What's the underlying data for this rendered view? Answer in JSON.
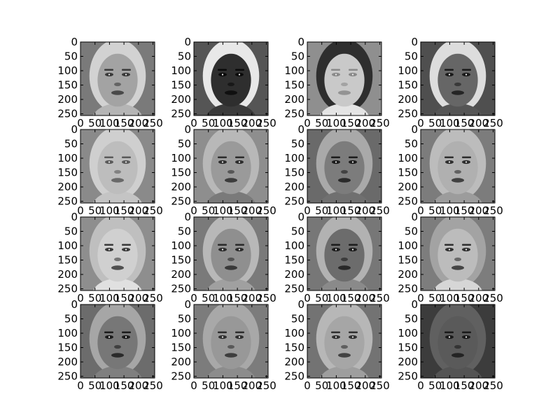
{
  "chart_data": {
    "type": "image-grid",
    "rows": 4,
    "cols": 4,
    "colormap": "gray",
    "xlim": [
      0,
      256
    ],
    "ylim": [
      256,
      0
    ],
    "x_ticks": [
      0,
      50,
      100,
      150,
      200,
      250
    ],
    "y_ticks": [
      0,
      50,
      100,
      150,
      200,
      250
    ],
    "x_tick_labels": [
      "0",
      "50",
      "100",
      "150",
      "200",
      "250"
    ],
    "y_tick_labels": [
      "0",
      "50",
      "100",
      "150",
      "200",
      "250"
    ],
    "panels": [
      {
        "row": 0,
        "col": 0,
        "bg": "#7a7a7a",
        "face": "#a3a3a3",
        "hair": "#d2d2d2",
        "feature": "#3a3a3a",
        "neck": "#b5b5b5"
      },
      {
        "row": 0,
        "col": 1,
        "bg": "#555555",
        "face": "#2e2e2e",
        "hair": "#e8e8e8",
        "feature": "#0a0a0a",
        "neck": "#3a3a3a"
      },
      {
        "row": 0,
        "col": 2,
        "bg": "#8f8f8f",
        "face": "#c9c9c9",
        "hair": "#2e2e2e",
        "feature": "#8a8a8a",
        "neck": "#e4e4e4"
      },
      {
        "row": 0,
        "col": 3,
        "bg": "#4f4f4f",
        "face": "#666666",
        "hair": "#dddddd",
        "feature": "#1a1a1a",
        "neck": "#555555"
      },
      {
        "row": 1,
        "col": 0,
        "bg": "#8a8a8a",
        "face": "#bdbdbd",
        "hair": "#cfcfcf",
        "feature": "#5a5a5a",
        "neck": "#c4c4c4"
      },
      {
        "row": 1,
        "col": 1,
        "bg": "#8e8e8e",
        "face": "#9a9a9a",
        "hair": "#b8b8b8",
        "feature": "#2c2c2c",
        "neck": "#7a7a7a"
      },
      {
        "row": 1,
        "col": 2,
        "bg": "#6a6a6a",
        "face": "#7c7c7c",
        "hair": "#a9a9a9",
        "feature": "#1c1c1c",
        "neck": "#707070"
      },
      {
        "row": 1,
        "col": 3,
        "bg": "#7c7c7c",
        "face": "#b0b0b0",
        "hair": "#bcbcbc",
        "feature": "#2e2e2e",
        "neck": "#9c9c9c"
      },
      {
        "row": 2,
        "col": 0,
        "bg": "#8e8e8e",
        "face": "#d0d0d0",
        "hair": "#bfbfbf",
        "feature": "#3a3a3a",
        "neck": "#e0e0e0"
      },
      {
        "row": 2,
        "col": 1,
        "bg": "#7a7a7a",
        "face": "#8f8f8f",
        "hair": "#b8b8b8",
        "feature": "#2a2a2a",
        "neck": "#a0a0a0"
      },
      {
        "row": 2,
        "col": 2,
        "bg": "#777777",
        "face": "#6c6c6c",
        "hair": "#b2b2b2",
        "feature": "#1c1c1c",
        "neck": "#8a8a8a"
      },
      {
        "row": 2,
        "col": 3,
        "bg": "#7d7d7d",
        "face": "#bcbcbc",
        "hair": "#a3a3a3",
        "feature": "#303030",
        "neck": "#d6d6d6"
      },
      {
        "row": 3,
        "col": 0,
        "bg": "#6c6c6c",
        "face": "#777777",
        "hair": "#a6a6a6",
        "feature": "#1c1c1c",
        "neck": "#7f7f7f"
      },
      {
        "row": 3,
        "col": 1,
        "bg": "#7c7c7c",
        "face": "#989898",
        "hair": "#a8a8a8",
        "feature": "#2e2e2e",
        "neck": "#8c8c8c"
      },
      {
        "row": 3,
        "col": 2,
        "bg": "#737373",
        "face": "#a6a6a6",
        "hair": "#b7b7b7",
        "feature": "#303030",
        "neck": "#9e9e9e"
      },
      {
        "row": 3,
        "col": 3,
        "bg": "#3c3c3c",
        "face": "#5a5a5a",
        "hair": "#606060",
        "feature": "#1a1a1a",
        "neck": "#545454"
      }
    ]
  }
}
